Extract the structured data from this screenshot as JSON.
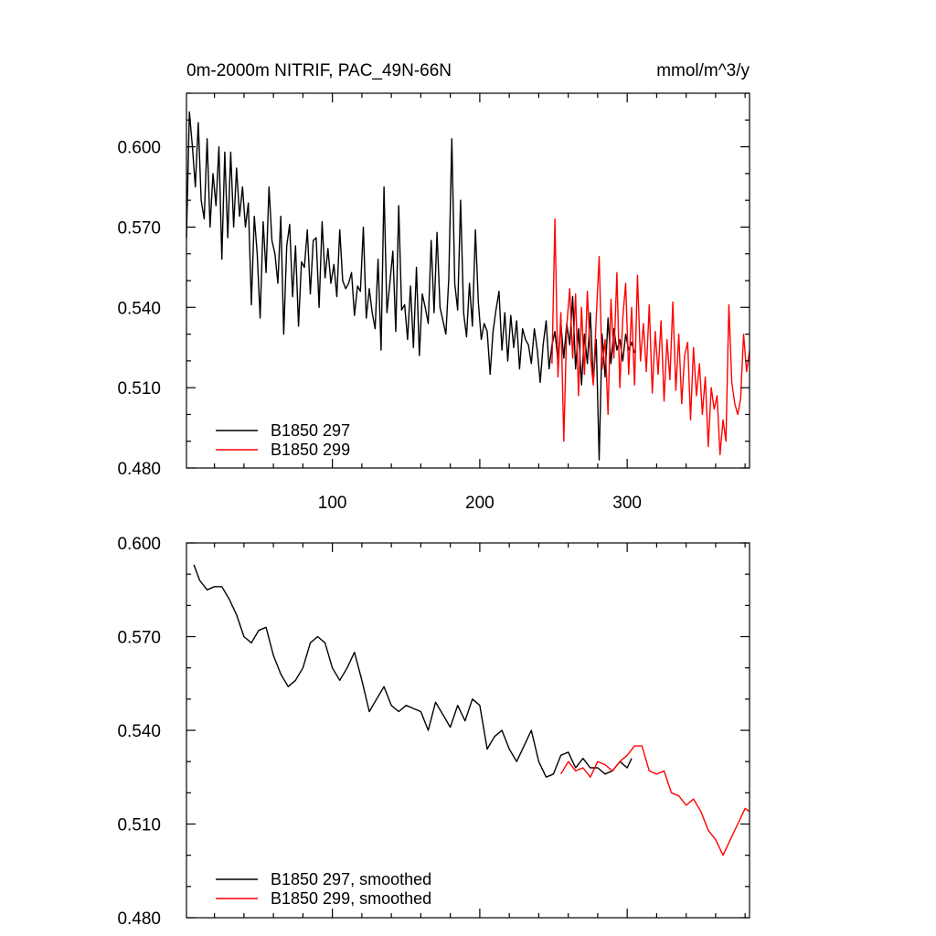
{
  "chart_data": [
    {
      "type": "line",
      "title_left": "0m-2000m NITRIF, PAC_49N-66N",
      "title_right": "mmol/m^3/y",
      "xlim": [
        1,
        383
      ],
      "ylim": [
        0.48,
        0.62
      ],
      "x_tick_values": [
        100,
        200,
        300
      ],
      "x_tick_labels": [
        "100",
        "200",
        "300"
      ],
      "y_tick_values": [
        0.48,
        0.51,
        0.54,
        0.57,
        0.6
      ],
      "y_tick_labels": [
        "0.480",
        "0.510",
        "0.540",
        "0.570",
        "0.600"
      ],
      "legend_position": "bottom-left",
      "grid": false,
      "series": [
        {
          "name": "B1850 297",
          "color": "#000000",
          "x": [
            1,
            3,
            5,
            7,
            9,
            11,
            13,
            15,
            17,
            19,
            21,
            23,
            25,
            27,
            29,
            31,
            33,
            35,
            37,
            39,
            41,
            43,
            45,
            47,
            49,
            51,
            53,
            55,
            57,
            59,
            61,
            63,
            65,
            67,
            69,
            71,
            73,
            75,
            77,
            79,
            81,
            83,
            85,
            87,
            89,
            91,
            93,
            95,
            97,
            99,
            101,
            103,
            105,
            107,
            109,
            111,
            113,
            115,
            117,
            119,
            121,
            123,
            125,
            127,
            129,
            131,
            133,
            135,
            137,
            139,
            141,
            143,
            145,
            147,
            149,
            151,
            153,
            155,
            157,
            159,
            161,
            163,
            165,
            167,
            169,
            171,
            173,
            175,
            177,
            179,
            181,
            183,
            185,
            187,
            189,
            191,
            193,
            195,
            197,
            199,
            201,
            203,
            205,
            207,
            209,
            211,
            213,
            215,
            217,
            219,
            221,
            223,
            225,
            227,
            229,
            231,
            233,
            235,
            237,
            239,
            241,
            243,
            245,
            247,
            249,
            251,
            253,
            255,
            257,
            259,
            261,
            263,
            265,
            267,
            269,
            271,
            273,
            275,
            277,
            279,
            281,
            283,
            285,
            287,
            289,
            291,
            293,
            295,
            297,
            299,
            301,
            303,
            305
          ],
          "y": [
            0.566,
            0.613,
            0.6,
            0.585,
            0.609,
            0.58,
            0.573,
            0.603,
            0.57,
            0.59,
            0.578,
            0.6,
            0.558,
            0.598,
            0.566,
            0.598,
            0.57,
            0.592,
            0.574,
            0.585,
            0.57,
            0.579,
            0.541,
            0.574,
            0.56,
            0.536,
            0.572,
            0.553,
            0.585,
            0.565,
            0.56,
            0.549,
            0.574,
            0.53,
            0.563,
            0.571,
            0.544,
            0.563,
            0.533,
            0.557,
            0.555,
            0.569,
            0.545,
            0.565,
            0.566,
            0.54,
            0.572,
            0.551,
            0.562,
            0.549,
            0.556,
            0.544,
            0.569,
            0.55,
            0.547,
            0.549,
            0.553,
            0.537,
            0.548,
            0.546,
            0.57,
            0.536,
            0.547,
            0.538,
            0.532,
            0.558,
            0.524,
            0.585,
            0.538,
            0.549,
            0.561,
            0.531,
            0.578,
            0.539,
            0.541,
            0.528,
            0.548,
            0.525,
            0.555,
            0.522,
            0.545,
            0.54,
            0.534,
            0.565,
            0.538,
            0.568,
            0.54,
            0.535,
            0.53,
            0.551,
            0.603,
            0.549,
            0.539,
            0.58,
            0.538,
            0.529,
            0.549,
            0.533,
            0.569,
            0.542,
            0.528,
            0.534,
            0.531,
            0.515,
            0.531,
            0.539,
            0.546,
            0.524,
            0.538,
            0.52,
            0.537,
            0.525,
            0.535,
            0.517,
            0.532,
            0.528,
            0.526,
            0.519,
            0.532,
            0.524,
            0.512,
            0.526,
            0.535,
            0.517,
            0.526,
            0.531,
            0.52,
            0.534,
            0.521,
            0.534,
            0.526,
            0.544,
            0.517,
            0.532,
            0.511,
            0.53,
            0.519,
            0.538,
            0.512,
            0.528,
            0.483,
            0.53,
            0.514,
            0.536,
            0.519,
            0.532,
            0.524,
            0.528,
            0.52,
            0.53,
            0.524,
            0.527,
            0.523
          ]
        },
        {
          "name": "B1850 299",
          "color": "#ff0000",
          "x": [
            249,
            251,
            253,
            255,
            257,
            259,
            261,
            263,
            265,
            267,
            269,
            271,
            273,
            275,
            277,
            279,
            281,
            283,
            285,
            287,
            289,
            291,
            293,
            295,
            297,
            299,
            301,
            303,
            305,
            307,
            309,
            311,
            313,
            315,
            317,
            319,
            321,
            323,
            325,
            327,
            329,
            331,
            333,
            335,
            337,
            339,
            341,
            343,
            345,
            347,
            349,
            351,
            353,
            355,
            357,
            359,
            361,
            363,
            365,
            367,
            369,
            371,
            373,
            375,
            377,
            379,
            381,
            383
          ],
          "y": [
            0.519,
            0.573,
            0.514,
            0.538,
            0.49,
            0.533,
            0.547,
            0.521,
            0.545,
            0.507,
            0.54,
            0.515,
            0.546,
            0.522,
            0.511,
            0.536,
            0.559,
            0.517,
            0.528,
            0.5,
            0.543,
            0.521,
            0.553,
            0.51,
            0.536,
            0.549,
            0.515,
            0.54,
            0.511,
            0.552,
            0.52,
            0.534,
            0.516,
            0.541,
            0.508,
            0.531,
            0.515,
            0.535,
            0.505,
            0.528,
            0.513,
            0.542,
            0.509,
            0.53,
            0.504,
            0.522,
            0.527,
            0.498,
            0.525,
            0.507,
            0.519,
            0.5,
            0.514,
            0.488,
            0.51,
            0.502,
            0.507,
            0.485,
            0.498,
            0.49,
            0.541,
            0.512,
            0.504,
            0.5,
            0.506,
            0.53,
            0.516,
            0.524
          ]
        }
      ]
    },
    {
      "type": "line",
      "xlim": [
        1,
        383
      ],
      "ylim": [
        0.48,
        0.6
      ],
      "x_tick_values": [
        100,
        200,
        300
      ],
      "y_tick_values": [
        0.48,
        0.51,
        0.54,
        0.57,
        0.6
      ],
      "y_tick_labels": [
        "0.480",
        "0.510",
        "0.540",
        "0.570",
        "0.600"
      ],
      "legend_position": "bottom-left",
      "grid": false,
      "series": [
        {
          "name": "B1850 297, smoothed",
          "color": "#000000",
          "x": [
            6,
            10,
            15,
            20,
            25,
            30,
            35,
            40,
            45,
            50,
            55,
            60,
            65,
            70,
            75,
            80,
            85,
            90,
            95,
            100,
            105,
            110,
            115,
            120,
            125,
            130,
            135,
            140,
            145,
            150,
            155,
            160,
            165,
            170,
            175,
            180,
            185,
            190,
            195,
            200,
            205,
            210,
            215,
            220,
            225,
            230,
            235,
            240,
            245,
            250,
            255,
            260,
            265,
            270,
            275,
            280,
            285,
            290,
            295,
            300,
            303
          ],
          "y": [
            0.593,
            0.588,
            0.585,
            0.586,
            0.586,
            0.582,
            0.577,
            0.57,
            0.568,
            0.572,
            0.573,
            0.564,
            0.558,
            0.554,
            0.556,
            0.56,
            0.568,
            0.57,
            0.568,
            0.56,
            0.556,
            0.56,
            0.565,
            0.556,
            0.546,
            0.55,
            0.554,
            0.548,
            0.546,
            0.548,
            0.547,
            0.546,
            0.54,
            0.549,
            0.545,
            0.541,
            0.548,
            0.543,
            0.55,
            0.548,
            0.534,
            0.538,
            0.54,
            0.534,
            0.53,
            0.535,
            0.54,
            0.53,
            0.525,
            0.526,
            0.532,
            0.533,
            0.528,
            0.531,
            0.528,
            0.528,
            0.526,
            0.527,
            0.53,
            0.528,
            0.531
          ]
        },
        {
          "name": "B1850 299, smoothed",
          "color": "#ff0000",
          "x": [
            255,
            260,
            265,
            270,
            275,
            280,
            285,
            290,
            295,
            300,
            305,
            310,
            315,
            320,
            325,
            330,
            335,
            340,
            345,
            350,
            355,
            360,
            365,
            370,
            375,
            380,
            383
          ],
          "y": [
            0.526,
            0.53,
            0.527,
            0.528,
            0.525,
            0.53,
            0.529,
            0.527,
            0.53,
            0.532,
            0.535,
            0.535,
            0.527,
            0.526,
            0.527,
            0.52,
            0.519,
            0.516,
            0.518,
            0.514,
            0.508,
            0.505,
            0.5,
            0.505,
            0.51,
            0.515,
            0.514
          ]
        }
      ]
    }
  ]
}
